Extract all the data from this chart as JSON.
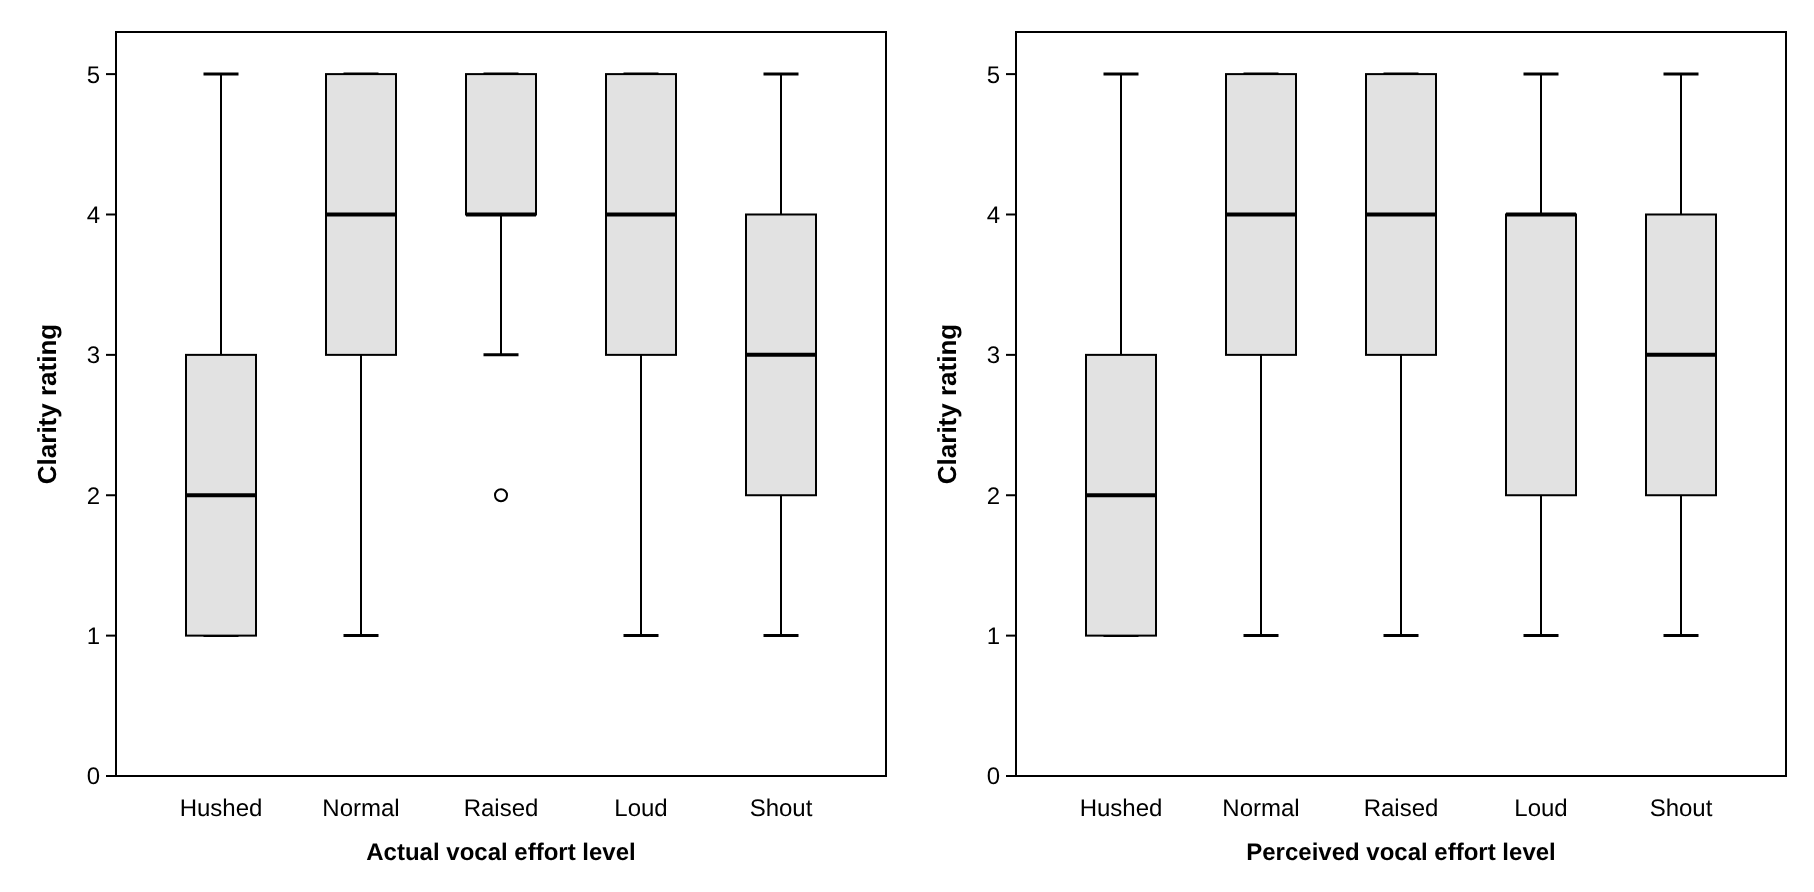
{
  "chart_data": [
    {
      "type": "box",
      "xlabel": "Actual vocal effort level",
      "ylabel": "Clarity rating",
      "categories": [
        "Hushed",
        "Normal",
        "Raised",
        "Loud",
        "Shout"
      ],
      "ylim": [
        0,
        5.3
      ],
      "yticks": [
        0,
        1,
        2,
        3,
        4,
        5
      ],
      "color": "#e2e2e2",
      "grid": false,
      "boxes": [
        {
          "low": 1,
          "q1": 1,
          "median": 2,
          "q3": 3,
          "high": 5
        },
        {
          "low": 1,
          "q1": 3,
          "median": 4,
          "q3": 5,
          "high": 5
        },
        {
          "low": 3,
          "q1": 4,
          "median": 4,
          "q3": 5,
          "high": 5,
          "outliers": [
            2
          ]
        },
        {
          "low": 1,
          "q1": 3,
          "median": 4,
          "q3": 5,
          "high": 5
        },
        {
          "low": 1,
          "q1": 2,
          "median": 3,
          "q3": 4,
          "high": 5
        }
      ]
    },
    {
      "type": "box",
      "xlabel": "Perceived vocal effort level",
      "ylabel": "Clarity rating",
      "categories": [
        "Hushed",
        "Normal",
        "Raised",
        "Loud",
        "Shout"
      ],
      "ylim": [
        0,
        5.3
      ],
      "yticks": [
        0,
        1,
        2,
        3,
        4,
        5
      ],
      "color": "#e2e2e2",
      "grid": false,
      "boxes": [
        {
          "low": 1,
          "q1": 1,
          "median": 2,
          "q3": 3,
          "high": 5
        },
        {
          "low": 1,
          "q1": 3,
          "median": 4,
          "q3": 5,
          "high": 5
        },
        {
          "low": 1,
          "q1": 3,
          "median": 4,
          "q3": 5,
          "high": 5
        },
        {
          "low": 1,
          "q1": 2,
          "median": 4,
          "q3": 4,
          "high": 5
        },
        {
          "low": 1,
          "q1": 2,
          "median": 3,
          "q3": 4,
          "high": 5
        }
      ]
    }
  ]
}
